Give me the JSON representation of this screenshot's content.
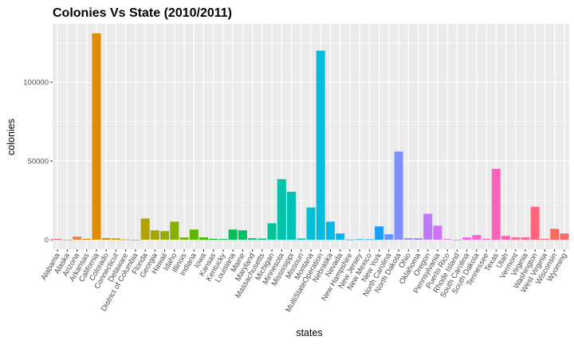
{
  "chart_data": {
    "type": "bar",
    "title": "Colonies Vs State (2010/2011)",
    "xlabel": "states",
    "ylabel": "colonies",
    "ylim": [
      -6000,
      137000
    ],
    "yticks": [
      0,
      50000,
      100000
    ],
    "ytick_labels": [
      "0",
      "50000",
      "100000"
    ],
    "grid": true,
    "legend": "none",
    "panel_color": "#ebebeb",
    "grid_color": "#ffffff",
    "categories": [
      "Alabama",
      "Alaska",
      "Arizona",
      "Arkansas",
      "California",
      "Colorado",
      "Connecticut",
      "Delaware",
      "District of Columbia",
      "Florida",
      "Georgia",
      "Hawaii",
      "Idaho",
      "Illinois",
      "Indiana",
      "Iowa",
      "Kansas",
      "Kentucky",
      "Louisiana",
      "Maine",
      "Maryland",
      "Massachusetts",
      "Michigan",
      "Minnesota",
      "Mississippi",
      "Missouri",
      "Montana",
      "MultiStateOperation",
      "Nebraska",
      "Nevada",
      "New Hampshire",
      "New Jersey",
      "New Mexico",
      "New York",
      "North Carolina",
      "North Dakota",
      "Ohio",
      "Oklahoma",
      "Oregon",
      "Pennsylvania",
      "Puerto Rico",
      "Rhode Island",
      "South Carolina",
      "South Dakota",
      "Tennessee",
      "Texas",
      "Utah",
      "Vermont",
      "Virginia",
      "Washington",
      "West Virginia",
      "Wisconsin",
      "Wyoming"
    ],
    "values": [
      600,
      100,
      2000,
      600,
      131000,
      1100,
      900,
      200,
      0,
      13500,
      6000,
      5500,
      11500,
      1500,
      6500,
      1500,
      600,
      500,
      6500,
      6000,
      1000,
      800,
      10500,
      38500,
      30500,
      800,
      20500,
      120000,
      11500,
      4000,
      200,
      400,
      300,
      8500,
      3500,
      56000,
      1000,
      1000,
      16500,
      9000,
      500,
      100,
      1500,
      3000,
      600,
      45000,
      2500,
      1500,
      1500,
      21000,
      600,
      7000,
      4000
    ],
    "colors": [
      "#f8766d",
      "#f47b5a",
      "#ef7f44",
      "#e7851e",
      "#e08b00",
      "#d99000",
      "#d19500",
      "#c79a00",
      "#bd9f00",
      "#b1a400",
      "#a4a800",
      "#96ac00",
      "#86b000",
      "#74b300",
      "#5eb600",
      "#41b900",
      "#00bc18",
      "#00be3d",
      "#00c053",
      "#00c167",
      "#00c279",
      "#00c38a",
      "#00c39a",
      "#00c3a9",
      "#00c3b7",
      "#00c2c4",
      "#00c0d1",
      "#00bddc",
      "#00bae7",
      "#00b6f0",
      "#00b1f8",
      "#00abfd",
      "#00a5ff",
      "#189eff",
      "#6197ff",
      "#808fff",
      "#9988ff",
      "#ad80ff",
      "#bf79fd",
      "#ce73f8",
      "#da6ff1",
      "#e56ae9",
      "#ee67df",
      "#f464d4",
      "#fa62c7",
      "#fd61ba",
      "#ff61ad",
      "#ff629e",
      "#ff638f",
      "#fe657f",
      "#fc676f",
      "#fa6b5f",
      "#f86b6f"
    ]
  }
}
